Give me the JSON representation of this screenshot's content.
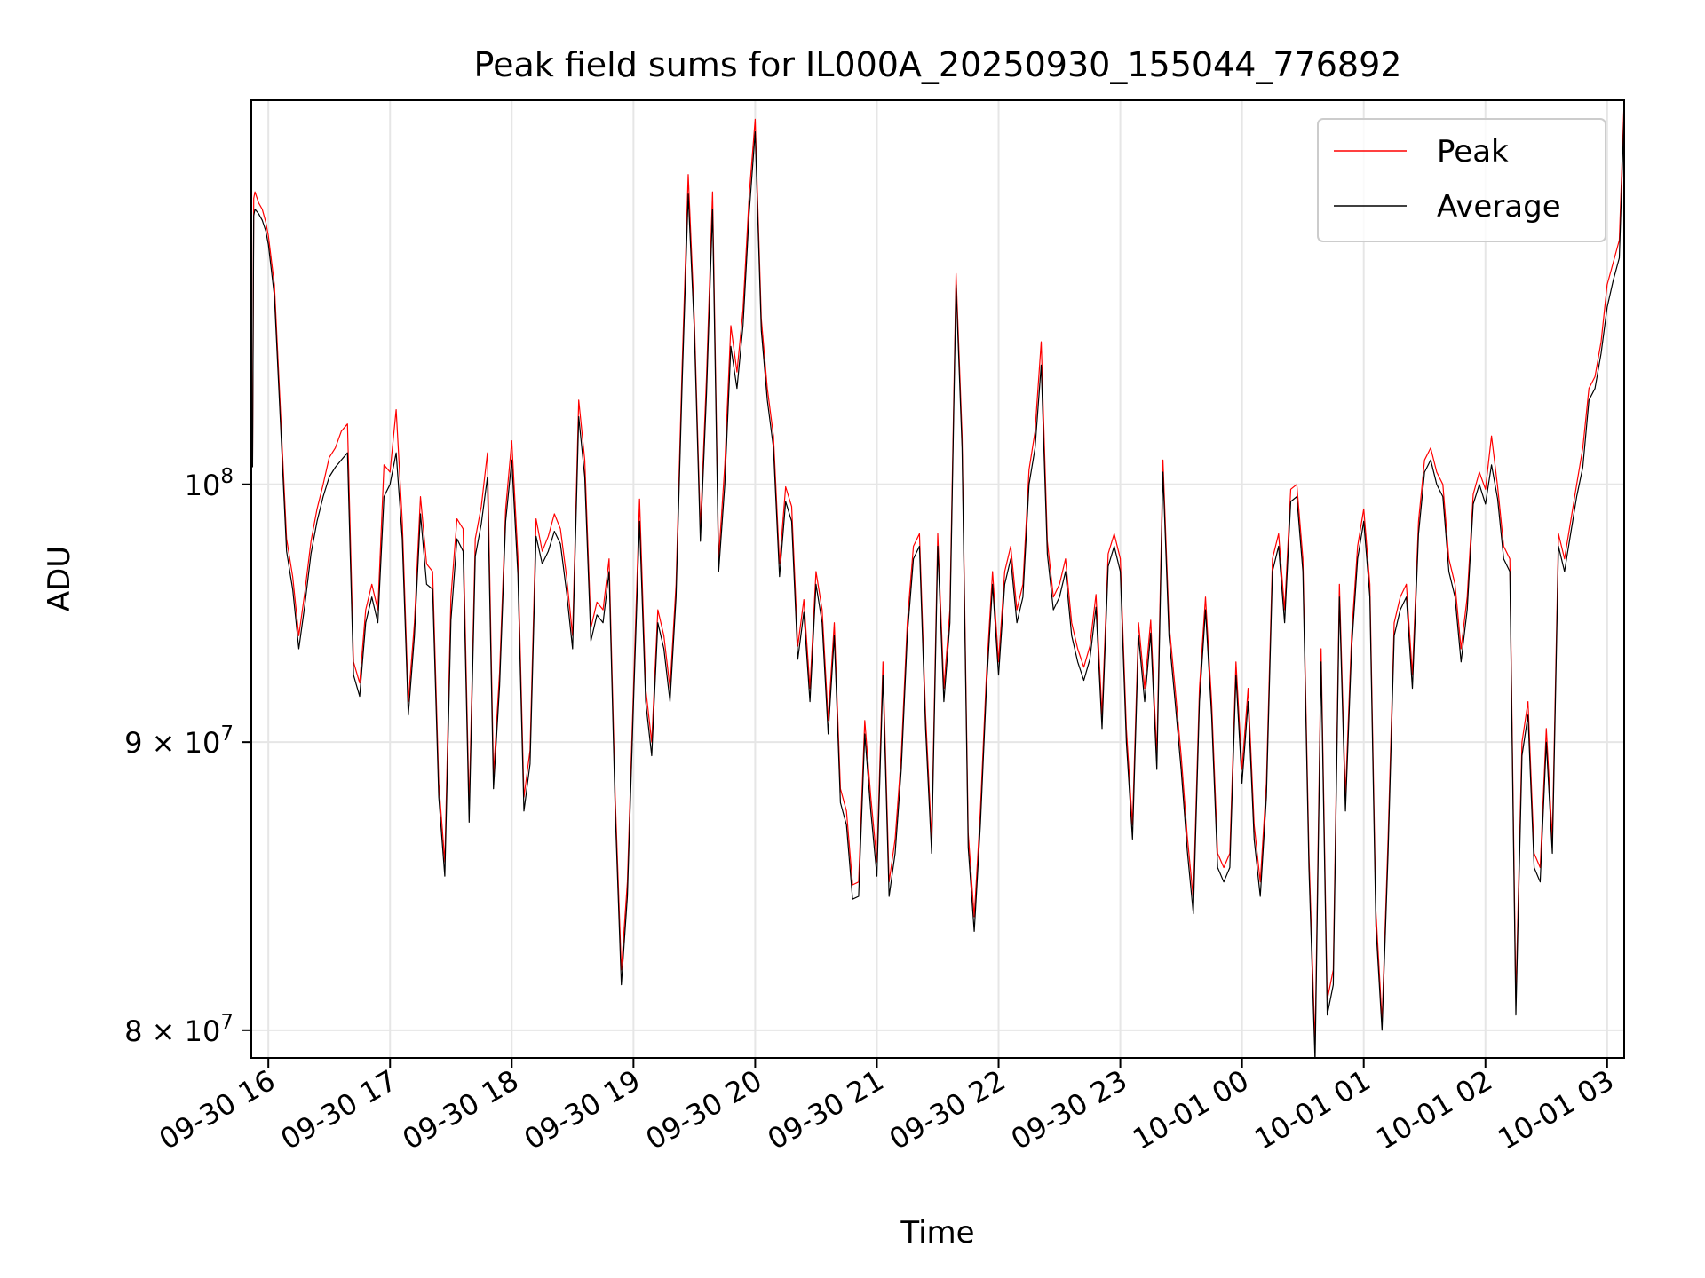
{
  "chart_data": {
    "type": "line",
    "title": "Peak field sums for IL000A_20250930_155044_776892",
    "xlabel": "Time",
    "ylabel": "ADU",
    "yscale": "log",
    "grid": true,
    "legend_position": "top-right",
    "x_unit": "hours since 09-30 16:00",
    "xlim": [
      -0.14,
      11.14
    ],
    "ylim": [
      79100000,
      117000000
    ],
    "x_ticks": [
      {
        "value": 0,
        "label": "09-30 16"
      },
      {
        "value": 1,
        "label": "09-30 17"
      },
      {
        "value": 2,
        "label": "09-30 18"
      },
      {
        "value": 3,
        "label": "09-30 19"
      },
      {
        "value": 4,
        "label": "09-30 20"
      },
      {
        "value": 5,
        "label": "09-30 21"
      },
      {
        "value": 6,
        "label": "09-30 22"
      },
      {
        "value": 7,
        "label": "09-30 23"
      },
      {
        "value": 8,
        "label": "10-01 00"
      },
      {
        "value": 9,
        "label": "10-01 01"
      },
      {
        "value": 10,
        "label": "10-01 02"
      },
      {
        "value": 11,
        "label": "10-01 03"
      }
    ],
    "y_ticks": [
      {
        "value": 80000000,
        "mantissa": "8",
        "exponent": "7"
      },
      {
        "value": 90000000,
        "mantissa": "9",
        "exponent": "7"
      },
      {
        "value": 100000000,
        "mantissa": "",
        "exponent": "8"
      }
    ],
    "x": [
      -0.13,
      -0.12,
      -0.11,
      -0.08,
      -0.05,
      -0.02,
      0.0,
      0.05,
      0.1,
      0.15,
      0.2,
      0.25,
      0.3,
      0.35,
      0.4,
      0.45,
      0.5,
      0.55,
      0.6,
      0.65,
      0.7,
      0.75,
      0.8,
      0.85,
      0.9,
      0.95,
      1.0,
      1.05,
      1.1,
      1.15,
      1.2,
      1.25,
      1.3,
      1.35,
      1.4,
      1.45,
      1.5,
      1.55,
      1.6,
      1.65,
      1.7,
      1.75,
      1.8,
      1.85,
      1.9,
      1.95,
      2.0,
      2.05,
      2.1,
      2.15,
      2.2,
      2.25,
      2.3,
      2.35,
      2.4,
      2.45,
      2.5,
      2.55,
      2.6,
      2.65,
      2.7,
      2.75,
      2.8,
      2.85,
      2.9,
      2.95,
      3.0,
      3.05,
      3.1,
      3.15,
      3.2,
      3.25,
      3.3,
      3.35,
      3.4,
      3.45,
      3.5,
      3.55,
      3.6,
      3.65,
      3.7,
      3.75,
      3.8,
      3.85,
      3.9,
      3.95,
      4.0,
      4.05,
      4.1,
      4.15,
      4.2,
      4.25,
      4.3,
      4.35,
      4.4,
      4.45,
      4.5,
      4.55,
      4.6,
      4.65,
      4.7,
      4.75,
      4.8,
      4.85,
      4.9,
      4.95,
      5.0,
      5.05,
      5.1,
      5.15,
      5.2,
      5.25,
      5.3,
      5.35,
      5.4,
      5.45,
      5.5,
      5.55,
      5.6,
      5.65,
      5.7,
      5.75,
      5.8,
      5.85,
      5.9,
      5.95,
      6.0,
      6.05,
      6.1,
      6.15,
      6.2,
      6.25,
      6.3,
      6.35,
      6.4,
      6.45,
      6.5,
      6.55,
      6.6,
      6.65,
      6.7,
      6.75,
      6.8,
      6.85,
      6.9,
      6.95,
      7.0,
      7.05,
      7.1,
      7.15,
      7.2,
      7.25,
      7.3,
      7.35,
      7.4,
      7.45,
      7.5,
      7.55,
      7.6,
      7.65,
      7.7,
      7.75,
      7.8,
      7.85,
      7.9,
      7.95,
      8.0,
      8.05,
      8.1,
      8.15,
      8.2,
      8.25,
      8.3,
      8.35,
      8.4,
      8.45,
      8.5,
      8.55,
      8.6,
      8.65,
      8.7,
      8.75,
      8.8,
      8.85,
      8.9,
      8.95,
      9.0,
      9.05,
      9.1,
      9.15,
      9.2,
      9.25,
      9.3,
      9.35,
      9.4,
      9.45,
      9.5,
      9.55,
      9.6,
      9.65,
      9.7,
      9.75,
      9.8,
      9.85,
      9.9,
      9.95,
      10.0,
      10.05,
      10.1,
      10.15,
      10.2,
      10.25,
      10.3,
      10.35,
      10.4,
      10.45,
      10.5,
      10.55,
      10.6,
      10.65,
      10.7,
      10.75,
      10.8,
      10.85,
      10.9,
      10.95,
      11.0,
      11.05,
      11.1,
      11.14
    ],
    "series": [
      {
        "name": "Peak",
        "color": "#ff0000",
        "values": [
          101000000,
          112400000,
          112700000,
          112200000,
          111900000,
          111300000,
          110700000,
          108500000,
          103000000,
          97800000,
          96300000,
          94000000,
          95700000,
          97700000,
          99000000,
          100000000,
          101100000,
          101500000,
          102200000,
          102500000,
          93000000,
          92200000,
          95000000,
          96000000,
          95000000,
          100800000,
          100500000,
          103100000,
          98500000,
          91500000,
          94500000,
          99500000,
          96800000,
          96500000,
          88500000,
          85700000,
          95500000,
          98600000,
          98200000,
          87600000,
          97800000,
          99100000,
          101300000,
          88800000,
          92600000,
          99000000,
          101800000,
          97100000,
          88000000,
          89700000,
          98600000,
          97300000,
          97900000,
          98800000,
          98200000,
          96300000,
          94000000,
          103500000,
          101000000,
          94300000,
          95300000,
          95000000,
          97000000,
          88000000,
          82000000,
          85000000,
          92000000,
          99400000,
          92000000,
          90000000,
          95000000,
          94000000,
          92000000,
          96000000,
          105000000,
          113500000,
          107000000,
          98200000,
          104500000,
          112700000,
          97000000,
          100800000,
          106700000,
          104700000,
          107400000,
          112500000,
          116100000,
          107000000,
          104000000,
          102000000,
          96800000,
          99900000,
          99100000,
          93600000,
          95400000,
          92000000,
          96500000,
          95000000,
          90800000,
          94500000,
          88300000,
          87500000,
          84900000,
          85000000,
          90800000,
          88000000,
          85700000,
          93000000,
          85000000,
          86500000,
          89500000,
          94500000,
          97500000,
          98000000,
          91000000,
          86500000,
          98000000,
          92000000,
          95000000,
          109000000,
          102000000,
          86700000,
          83800000,
          87500000,
          92500000,
          96500000,
          93000000,
          96500000,
          97500000,
          95000000,
          96000000,
          100600000,
          102200000,
          106000000,
          97700000,
          95500000,
          96000000,
          97000000,
          94500000,
          93500000,
          92800000,
          93600000,
          95600000,
          91000000,
          97200000,
          98000000,
          97000000,
          90500000,
          87000000,
          94500000,
          92000000,
          94600000,
          89500000,
          101000000,
          94500000,
          92000000,
          89500000,
          86600000,
          84400000,
          92000000,
          95500000,
          91500000,
          86000000,
          85500000,
          86000000,
          93000000,
          89000000,
          92000000,
          87000000,
          85000000,
          88500000,
          97000000,
          98000000,
          95000000,
          99800000,
          100000000,
          97000000,
          86000000,
          79500000,
          93500000,
          81000000,
          82000000,
          96000000,
          88000000,
          94000000,
          97500000,
          99000000,
          96000000,
          84000000,
          80300000,
          86500000,
          94500000,
          95500000,
          96000000,
          92500000,
          98500000,
          101000000,
          101500000,
          100500000,
          100000000,
          97000000,
          96000000,
          93500000,
          95500000,
          99600000,
          100500000,
          99800000,
          102000000,
          99900000,
          97500000,
          97000000,
          81000000,
          90000000,
          91500000,
          86000000,
          85500000,
          90500000,
          86500000,
          98000000,
          97000000,
          98500000,
          100000000,
          101500000,
          104000000,
          104500000,
          106000000,
          108500000,
          109500000,
          110500000,
          117000000
        ]
      },
      {
        "name": "Average",
        "color": "#000000",
        "values": [
          100700000,
          111600000,
          111900000,
          111700000,
          111400000,
          110900000,
          110300000,
          108000000,
          102500000,
          97300000,
          95800000,
          93500000,
          95200000,
          97200000,
          98500000,
          99500000,
          100300000,
          100700000,
          101000000,
          101300000,
          92500000,
          91700000,
          94500000,
          95500000,
          94500000,
          99500000,
          100000000,
          101300000,
          97800000,
          91000000,
          94000000,
          98800000,
          96000000,
          95800000,
          88000000,
          85200000,
          94600000,
          97800000,
          97300000,
          87100000,
          97100000,
          98400000,
          100300000,
          88300000,
          92100000,
          98500000,
          101000000,
          96400000,
          87500000,
          89200000,
          97900000,
          96800000,
          97300000,
          98100000,
          97600000,
          95700000,
          93500000,
          102800000,
          100300000,
          93800000,
          94800000,
          94500000,
          96500000,
          87500000,
          81500000,
          84500000,
          91500000,
          98500000,
          91500000,
          89500000,
          94500000,
          93500000,
          91500000,
          95500000,
          104300000,
          112600000,
          106500000,
          97700000,
          103800000,
          111900000,
          96500000,
          100000000,
          105800000,
          104000000,
          106700000,
          111700000,
          115500000,
          106500000,
          103500000,
          101500000,
          96300000,
          99300000,
          98500000,
          93100000,
          94900000,
          91500000,
          96000000,
          94500000,
          90300000,
          94000000,
          87800000,
          87000000,
          84400000,
          84500000,
          90300000,
          87500000,
          85200000,
          92500000,
          84500000,
          86000000,
          89000000,
          94000000,
          97000000,
          97500000,
          90500000,
          86000000,
          97500000,
          91500000,
          94500000,
          108500000,
          101500000,
          86200000,
          83300000,
          87000000,
          92000000,
          96000000,
          92500000,
          96000000,
          97000000,
          94500000,
          95500000,
          100000000,
          101500000,
          105000000,
          97200000,
          95000000,
          95500000,
          96500000,
          94000000,
          93000000,
          92300000,
          93100000,
          95100000,
          90500000,
          96700000,
          97500000,
          96500000,
          90000000,
          86500000,
          94000000,
          91500000,
          94100000,
          89000000,
          100500000,
          94000000,
          91500000,
          89000000,
          86100000,
          83900000,
          91500000,
          95000000,
          91000000,
          85500000,
          85000000,
          85500000,
          92500000,
          88500000,
          91500000,
          86500000,
          84500000,
          88000000,
          96500000,
          97500000,
          94500000,
          99300000,
          99500000,
          96500000,
          85500000,
          79000000,
          93000000,
          80500000,
          81500000,
          95500000,
          87500000,
          93500000,
          97000000,
          98500000,
          95500000,
          83500000,
          80000000,
          86000000,
          94000000,
          95000000,
          95500000,
          92000000,
          98000000,
          100500000,
          101000000,
          100000000,
          99500000,
          96500000,
          95500000,
          93000000,
          95000000,
          99200000,
          100000000,
          99200000,
          100800000,
          99400000,
          97000000,
          96500000,
          80500000,
          89500000,
          91000000,
          85500000,
          85000000,
          90000000,
          86000000,
          97500000,
          96500000,
          98000000,
          99500000,
          100700000,
          103500000,
          104000000,
          105500000,
          107500000,
          108700000,
          109700000,
          116500000
        ]
      }
    ]
  }
}
